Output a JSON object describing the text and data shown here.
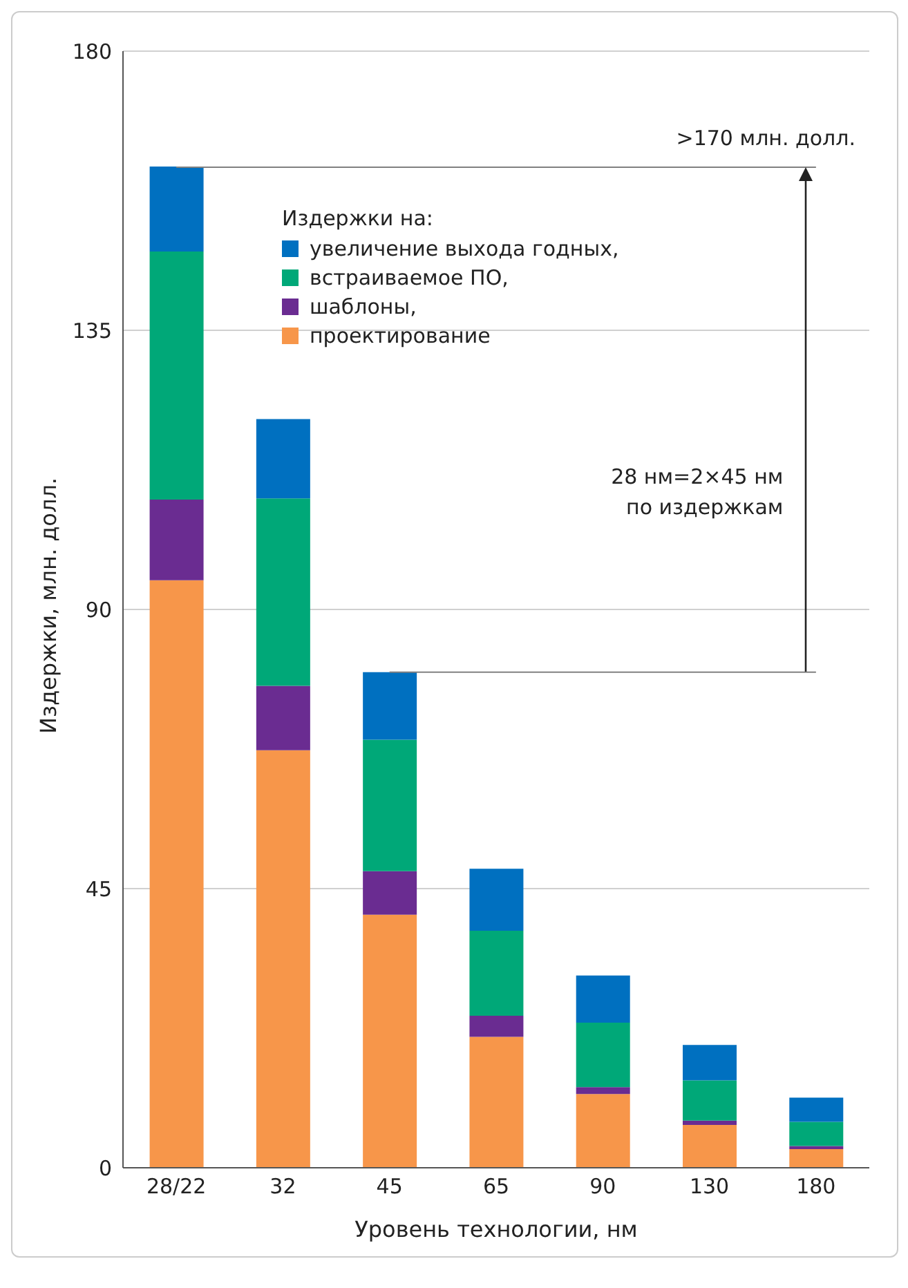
{
  "chart_data": {
    "type": "bar",
    "stacked": true,
    "xlabel": "Уровень технологии, нм",
    "ylabel": "Издержки, млн. долл.",
    "legend_title": "Издержки на:",
    "legend": "top",
    "grid": "y",
    "categories": [
      "28/22",
      "32",
      "45",
      "65",
      "90",
      "130",
      "180"
    ],
    "series": [
      {
        "name": "проектирование",
        "color": "#f7964a",
        "values": [
          94.7,
          67.3,
          40.8,
          21.1,
          11.9,
          6.9,
          3.0
        ]
      },
      {
        "name": "шаблоны,",
        "color": "#6a2c91",
        "values": [
          13.0,
          10.4,
          7.0,
          3.4,
          1.1,
          0.7,
          0.5
        ]
      },
      {
        "name": "встраиваемое ПО,",
        "color": "#00a878",
        "values": [
          40.0,
          30.2,
          21.2,
          13.7,
          10.4,
          6.5,
          3.9
        ]
      },
      {
        "name": "увеличение выхода годных,",
        "color": "#0070c0",
        "values": [
          13.7,
          12.8,
          10.9,
          10.0,
          7.6,
          5.7,
          3.9
        ]
      }
    ],
    "ylim": [
      0,
      180
    ],
    "yticks": [
      0,
      45,
      90,
      135,
      180
    ],
    "ref_lines": [
      {
        "axis": "y",
        "value": 161.3,
        "color": "#808080"
      },
      {
        "axis": "y",
        "value": 79.9,
        "color": "#808080"
      }
    ],
    "annotations": [
      ">170 млн. долл.",
      "28 нм=2×45 нм\nпо издержкам"
    ]
  }
}
